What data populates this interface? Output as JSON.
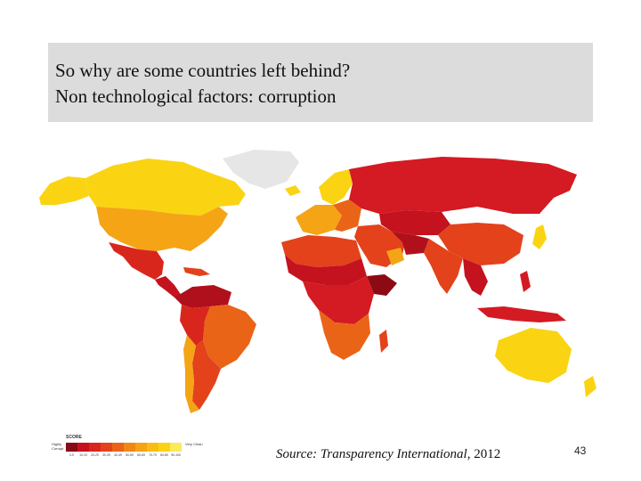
{
  "slide": {
    "title_line1": "So why are some countries left behind?",
    "title_line2": "Non technological factors: corruption",
    "source_label": "Source: Transparency International",
    "source_year": ", 2012",
    "page_number": "43"
  },
  "legend": {
    "title": "SCORE",
    "low_label": "Highly Corrupt",
    "high_label": "Very Clean",
    "ranges": [
      "0-9",
      "10-19",
      "20-29",
      "30-39",
      "40-49",
      "50-59",
      "60-69",
      "70-79",
      "80-89",
      "90-100"
    ],
    "colors": [
      "#8b0a14",
      "#c4121f",
      "#d9261c",
      "#e3421b",
      "#ea6418",
      "#f08818",
      "#f5a416",
      "#f8be14",
      "#fad413",
      "#fcea5a"
    ]
  },
  "map": {
    "colors": {
      "highly_corrupt": "#b0101c",
      "corrupt": "#d41a22",
      "mid_high": "#e53b1d",
      "mid": "#ea6418",
      "mid_clean": "#f5a416",
      "clean": "#fad413",
      "no_data": "#e6e6e6",
      "ocean": "#ffffff"
    }
  }
}
